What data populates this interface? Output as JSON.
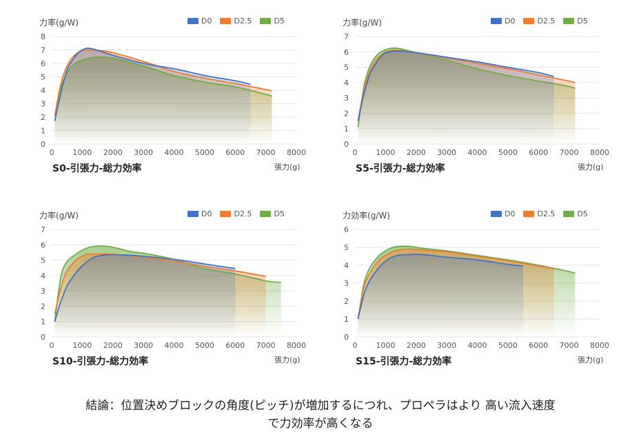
{
  "colors": {
    "D0": "#4472c4",
    "D2.5": "#ed7d31",
    "D5": "#70ad47"
  },
  "chart_data": [
    {
      "type": "line",
      "title": "S0-引張力-総力効率",
      "ylabel": "力率(g/W)",
      "xlabel": "張力(g)",
      "xlim": [
        0,
        8000
      ],
      "ylim": [
        0,
        8
      ],
      "xticks": [
        0,
        1000,
        2000,
        3000,
        4000,
        5000,
        6000,
        7000,
        8000
      ],
      "yticks": [
        0,
        1,
        2,
        3,
        4,
        5,
        6,
        7,
        8
      ],
      "series": [
        {
          "name": "D0",
          "x": [
            100,
            300,
            500,
            700,
            900,
            1100,
            1300,
            1600,
            2000,
            3000,
            4000,
            5000,
            6000,
            6500
          ],
          "y": [
            1.7,
            3.8,
            5.5,
            6.3,
            6.85,
            7.1,
            7.1,
            6.9,
            6.6,
            6.0,
            5.6,
            5.1,
            4.7,
            4.45
          ]
        },
        {
          "name": "D2.5",
          "x": [
            100,
            300,
            500,
            700,
            900,
            1100,
            1300,
            1600,
            2000,
            3000,
            4000,
            5000,
            6000,
            7000,
            7200
          ],
          "y": [
            2.1,
            4.5,
            5.8,
            6.5,
            6.85,
            7.0,
            7.0,
            6.95,
            6.8,
            6.15,
            5.4,
            4.9,
            4.5,
            4.05,
            3.95
          ]
        },
        {
          "name": "D5",
          "x": [
            100,
            300,
            500,
            700,
            1000,
            1400,
            1800,
            2200,
            3000,
            4000,
            5000,
            6000,
            7000,
            7200
          ],
          "y": [
            2.1,
            4.2,
            5.3,
            5.9,
            6.25,
            6.45,
            6.45,
            6.3,
            5.8,
            5.1,
            4.6,
            4.25,
            3.7,
            3.55
          ]
        }
      ]
    },
    {
      "type": "line",
      "title": "S5-引張力-総力効率",
      "ylabel": "力率(g/W)",
      "xlabel": "張力(g)",
      "xlim": [
        0,
        8000
      ],
      "ylim": [
        0,
        7
      ],
      "xticks": [
        0,
        1000,
        2000,
        3000,
        4000,
        5000,
        6000,
        7000,
        8000
      ],
      "yticks": [
        0,
        1,
        2,
        3,
        4,
        5,
        6,
        7
      ],
      "series": [
        {
          "name": "D0",
          "x": [
            100,
            300,
            500,
            700,
            900,
            1100,
            1400,
            2000,
            3000,
            4000,
            5000,
            6000,
            6500
          ],
          "y": [
            1.5,
            3.3,
            4.6,
            5.3,
            5.8,
            6.0,
            6.05,
            5.95,
            5.65,
            5.35,
            5.0,
            4.65,
            4.4
          ]
        },
        {
          "name": "D2.5",
          "x": [
            100,
            300,
            500,
            700,
            900,
            1100,
            1400,
            2000,
            3000,
            4000,
            5000,
            6000,
            7000,
            7200
          ],
          "y": [
            1.5,
            3.6,
            4.8,
            5.5,
            5.85,
            6.05,
            6.1,
            5.95,
            5.6,
            5.25,
            4.9,
            4.5,
            4.1,
            4.0
          ]
        },
        {
          "name": "D5",
          "x": [
            100,
            300,
            500,
            700,
            900,
            1100,
            1300,
            1600,
            2000,
            3000,
            4000,
            5000,
            6000,
            7000,
            7200
          ],
          "y": [
            1.1,
            3.8,
            5.1,
            5.75,
            6.05,
            6.2,
            6.25,
            6.15,
            5.95,
            5.45,
            4.9,
            4.45,
            4.1,
            3.75,
            3.6
          ]
        }
      ]
    },
    {
      "type": "line",
      "title": "S10-引張力-総力効率",
      "ylabel": "力率(g/W)",
      "xlabel": "張力(g)",
      "xlim": [
        0,
        8000
      ],
      "ylim": [
        0,
        7
      ],
      "xticks": [
        0,
        1000,
        2000,
        3000,
        4000,
        5000,
        6000,
        7000,
        8000
      ],
      "yticks": [
        0,
        1,
        2,
        3,
        4,
        5,
        6,
        7
      ],
      "series": [
        {
          "name": "D0",
          "x": [
            100,
            300,
            500,
            800,
            1100,
            1400,
            1800,
            2200,
            3000,
            4000,
            5000,
            6000
          ],
          "y": [
            1.0,
            2.3,
            3.3,
            4.2,
            4.8,
            5.2,
            5.35,
            5.35,
            5.25,
            5.05,
            4.75,
            4.45
          ]
        },
        {
          "name": "D2.5",
          "x": [
            100,
            300,
            500,
            800,
            1100,
            1400,
            1800,
            2200,
            3000,
            4000,
            5000,
            6000,
            7000
          ],
          "y": [
            1.5,
            3.2,
            4.3,
            5.0,
            5.35,
            5.4,
            5.4,
            5.35,
            5.2,
            4.95,
            4.6,
            4.3,
            3.95
          ]
        },
        {
          "name": "D5",
          "x": [
            100,
            300,
            500,
            800,
            1100,
            1400,
            1800,
            2200,
            2600,
            3000,
            4000,
            5000,
            6000,
            7000,
            7500
          ],
          "y": [
            1.0,
            3.9,
            4.9,
            5.4,
            5.75,
            5.9,
            5.9,
            5.75,
            5.55,
            5.45,
            5.05,
            4.45,
            4.1,
            3.65,
            3.55
          ]
        }
      ]
    },
    {
      "type": "line",
      "title": "S15-引張力-総力効率",
      "ylabel": "力効率(g/W)",
      "xlabel": "張力(g)",
      "xlim": [
        0,
        8000
      ],
      "ylim": [
        0,
        6
      ],
      "xticks": [
        0,
        1000,
        2000,
        3000,
        4000,
        5000,
        6000,
        7000,
        8000
      ],
      "yticks": [
        0,
        1,
        2,
        3,
        4,
        5,
        6
      ],
      "series": [
        {
          "name": "D0",
          "x": [
            100,
            300,
            500,
            800,
            1100,
            1400,
            1800,
            2200,
            3000,
            4000,
            5000,
            5500
          ],
          "y": [
            1.0,
            2.4,
            3.2,
            3.9,
            4.35,
            4.55,
            4.6,
            4.6,
            4.45,
            4.3,
            4.05,
            3.95
          ]
        },
        {
          "name": "D2.5",
          "x": [
            100,
            300,
            500,
            800,
            1100,
            1400,
            1800,
            2200,
            3000,
            4000,
            5000,
            6000,
            6500
          ],
          "y": [
            1.0,
            2.8,
            3.6,
            4.3,
            4.65,
            4.85,
            4.9,
            4.85,
            4.75,
            4.5,
            4.25,
            3.95,
            3.8
          ]
        },
        {
          "name": "D5",
          "x": [
            100,
            300,
            500,
            800,
            1100,
            1400,
            1800,
            2200,
            3000,
            4000,
            5000,
            6000,
            7000,
            7200
          ],
          "y": [
            1.0,
            3.0,
            3.9,
            4.55,
            4.9,
            5.05,
            5.05,
            4.95,
            4.8,
            4.55,
            4.3,
            4.0,
            3.65,
            3.55
          ]
        }
      ]
    }
  ],
  "conclusion": {
    "line1": "結論：位置決めブロックの角度(ピッチ)が増加するにつれ、プロペラはより 高い流入速度",
    "line2": "で力効率が高くなる"
  }
}
